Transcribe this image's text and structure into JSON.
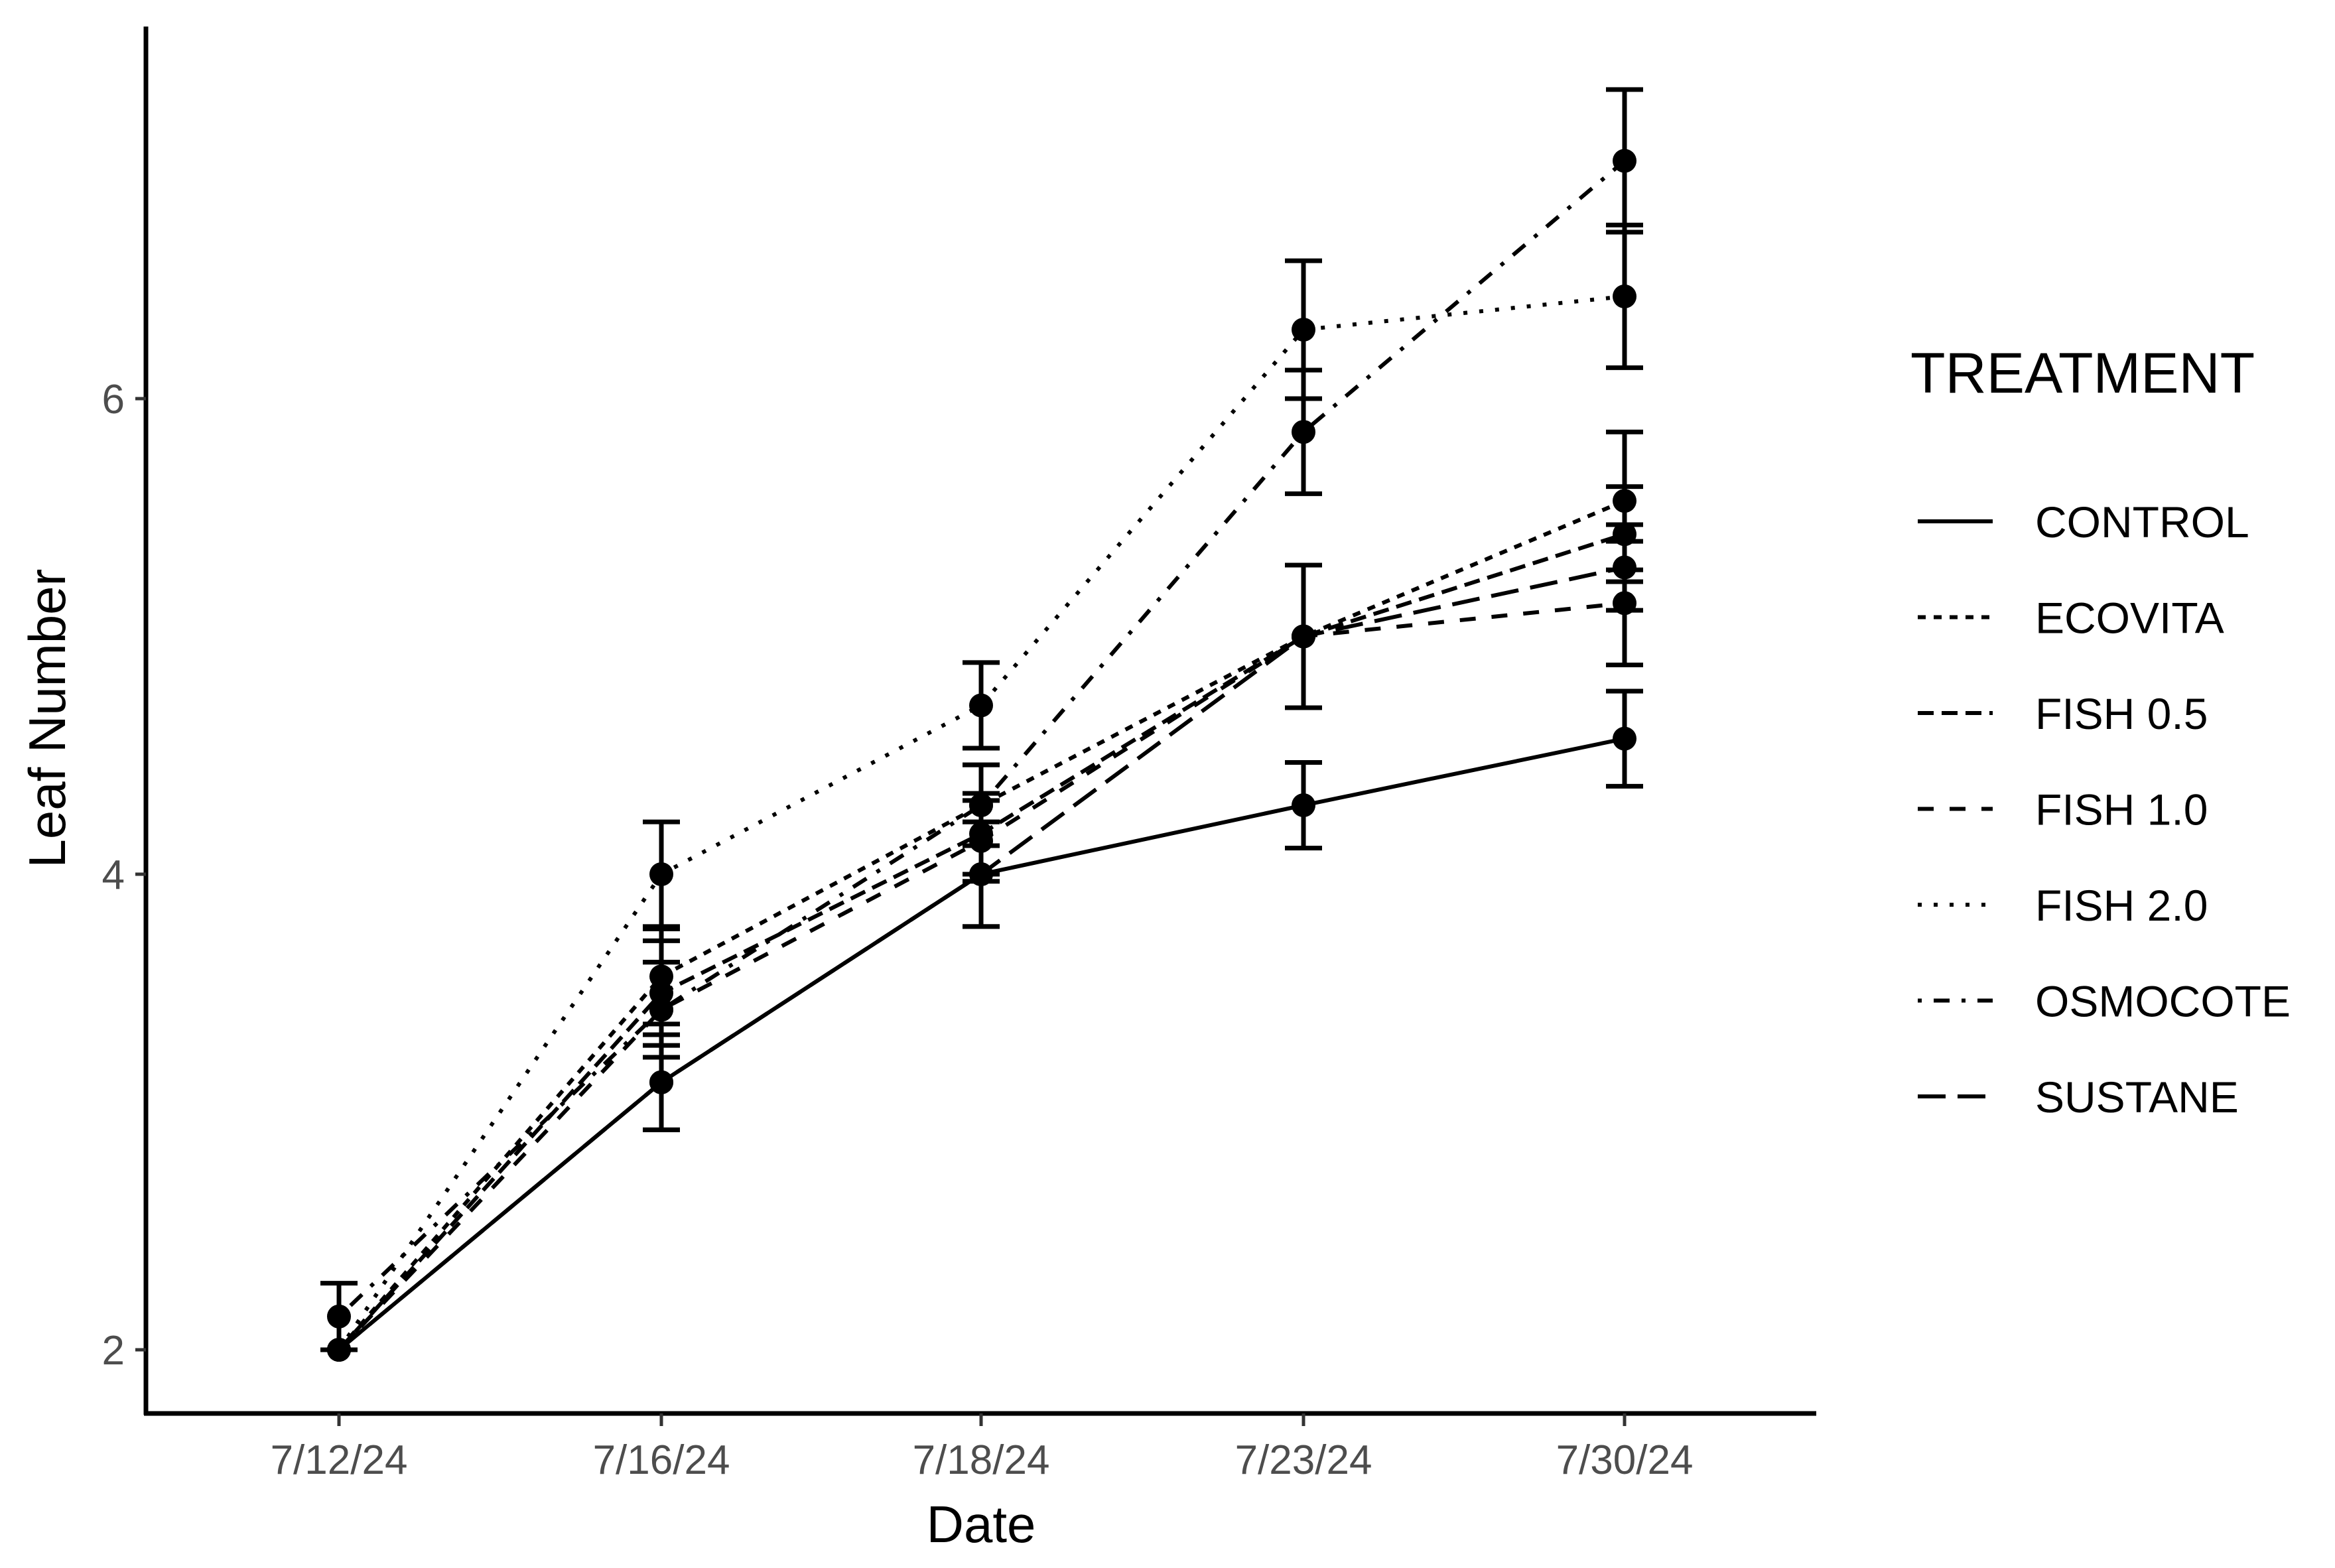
{
  "chart_data": {
    "type": "line",
    "title": "",
    "xlabel": "Date",
    "ylabel": "Leaf Number",
    "categories": [
      "7/12/24",
      "7/16/24",
      "7/18/24",
      "7/23/24",
      "7/30/24"
    ],
    "yticks": [
      2,
      4,
      6
    ],
    "ylim": [
      1.74,
      7.7
    ],
    "grid": false,
    "error_bars": true,
    "legend": {
      "title": "TREATMENT",
      "position": "right"
    },
    "series": [
      {
        "name": "CONTROL",
        "linetype": "solid",
        "values": [
          2.0,
          3.125,
          4.0,
          4.29,
          4.57
        ],
        "se": [
          0.0,
          0.2,
          0.22,
          0.18,
          0.2
        ]
      },
      {
        "name": "ECOVITA",
        "linetype": "22",
        "values": [
          2.0,
          3.57,
          4.29,
          5.0,
          5.57
        ],
        "se": [
          0.0,
          0.2,
          0.17,
          0.3,
          0.29
        ]
      },
      {
        "name": "FISH 0.5",
        "linetype": "42",
        "values": [
          2.0,
          3.5,
          4.17,
          5.0,
          5.43
        ],
        "se": [
          0.0,
          0.22,
          0.17,
          0.3,
          0.2
        ]
      },
      {
        "name": "FISH 1.0",
        "linetype": "44",
        "values": [
          2.0,
          3.43,
          4.14,
          5.0,
          5.14
        ],
        "se": [
          0.0,
          0.2,
          0.17,
          0.3,
          0.26
        ]
      },
      {
        "name": "FISH 2.0",
        "linetype": "13",
        "values": [
          2.0,
          4.0,
          4.71,
          6.29,
          6.43
        ],
        "se": [
          0.0,
          0.22,
          0.18,
          0.29,
          0.3
        ]
      },
      {
        "name": "OSMOCOTE",
        "linetype": "1343",
        "values": [
          2.14,
          3.43,
          4.29,
          5.86,
          7.0
        ],
        "se": [
          0.14,
          0.2,
          0.17,
          0.26,
          0.3
        ]
      },
      {
        "name": "SUSTANE",
        "linetype": "73",
        "values": [
          2.0,
          3.125,
          4.0,
          5.0,
          5.29
        ],
        "se": [
          0.0,
          0.2,
          0.22,
          0.3,
          0.18
        ]
      }
    ]
  },
  "colors": {
    "line": "#000000",
    "tick_text": "#4d4d4d",
    "background": "#ffffff"
  }
}
